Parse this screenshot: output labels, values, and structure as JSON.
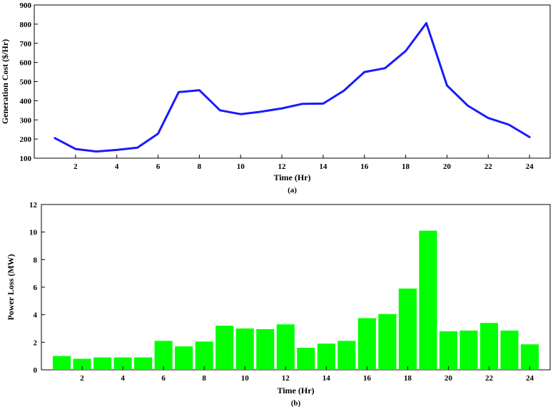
{
  "chart_data": [
    {
      "type": "line",
      "caption": "(a)",
      "xlabel": "Time (Hr)",
      "ylabel": "Generation Cost ($/Hr)",
      "xlim": [
        0,
        25
      ],
      "ylim": [
        100,
        900
      ],
      "xticks": [
        2,
        4,
        6,
        8,
        10,
        12,
        14,
        16,
        18,
        20,
        22,
        24
      ],
      "yticks": [
        100,
        200,
        300,
        400,
        500,
        600,
        700,
        800,
        900
      ],
      "grid": false,
      "color": "#1a1aff",
      "x": [
        1,
        2,
        3,
        4,
        5,
        6,
        7,
        8,
        9,
        10,
        11,
        12,
        13,
        14,
        15,
        16,
        17,
        18,
        19,
        20,
        21,
        22,
        23,
        24
      ],
      "y": [
        205,
        148,
        135,
        143,
        155,
        228,
        445,
        455,
        350,
        330,
        343,
        360,
        384,
        385,
        452,
        550,
        570,
        660,
        805,
        480,
        375,
        310,
        275,
        210
      ]
    },
    {
      "type": "bar",
      "caption": "(b)",
      "xlabel": "Time (Hr)",
      "ylabel": "Power Loss (MW)",
      "xlim": [
        0,
        25
      ],
      "ylim": [
        0,
        12
      ],
      "xticks": [
        2,
        4,
        6,
        8,
        10,
        12,
        14,
        16,
        18,
        20,
        22,
        24
      ],
      "yticks": [
        0,
        2,
        4,
        6,
        8,
        10,
        12
      ],
      "grid": false,
      "color": "#00ff00",
      "categories": [
        1,
        2,
        3,
        4,
        5,
        6,
        7,
        8,
        9,
        10,
        11,
        12,
        13,
        14,
        15,
        16,
        17,
        18,
        19,
        20,
        21,
        22,
        23,
        24
      ],
      "values": [
        1.0,
        0.8,
        0.9,
        0.9,
        0.9,
        2.1,
        1.7,
        2.05,
        3.2,
        3.0,
        2.95,
        3.3,
        1.6,
        1.9,
        2.1,
        3.75,
        4.05,
        5.9,
        10.1,
        2.8,
        2.85,
        3.4,
        2.85,
        1.85
      ]
    }
  ]
}
